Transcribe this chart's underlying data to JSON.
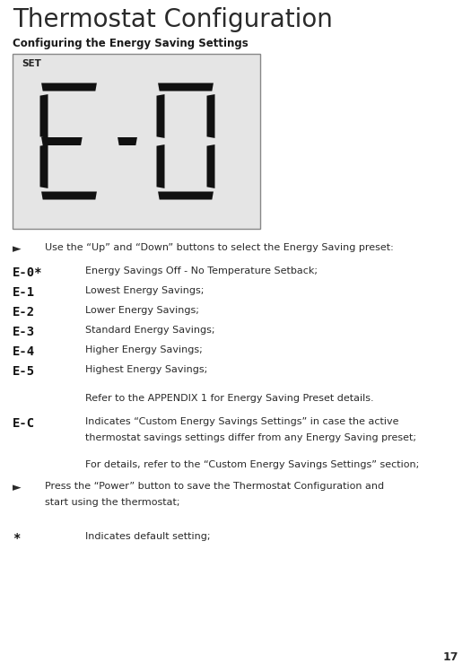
{
  "title": "Thermostat Configuration",
  "subtitle": "Configuring the Energy Saving Settings",
  "display_label": "SET",
  "display_bg": "#e5e5e5",
  "display_border": "#888888",
  "background_color": "#ffffff",
  "title_color": "#2a2a2a",
  "subtitle_color": "#1a1a1a",
  "body_color": "#2a2a2a",
  "lcd_color": "#111111",
  "arrow": "►",
  "bullet_items": [
    {
      "code": "E-0*",
      "description": "Energy Savings Off - No Temperature Setback;"
    },
    {
      "code": "E-1",
      "description": "Lowest Energy Savings;"
    },
    {
      "code": "E-2",
      "description": "Lower Energy Savings;"
    },
    {
      "code": "E-3",
      "description": "Standard Energy Savings;"
    },
    {
      "code": "E-4",
      "description": "Higher Energy Savings;"
    },
    {
      "code": "E-5",
      "description": "Highest Energy Savings;"
    }
  ],
  "appendix_note": "Refer to the APPENDIX 1 for Energy Saving Preset details.",
  "ec_code": "E-C",
  "ec_desc_line1": "Indicates “Custom Energy Savings Settings” in case the active",
  "ec_desc_line2": "thermostat savings settings differ from any Energy Saving preset;",
  "custom_note": "For details, refer to the “Custom Energy Savings Settings” section;",
  "power_line1": "Press the “Power” button to save the Thermostat Configuration and",
  "power_line2": "start using the thermostat;",
  "footnote": "Indicates default setting;",
  "footnote_symbol": "*",
  "page_number": "17",
  "title_fontsize": 20,
  "subtitle_fontsize": 8.5,
  "body_fontsize": 8,
  "code_fontsize": 10
}
